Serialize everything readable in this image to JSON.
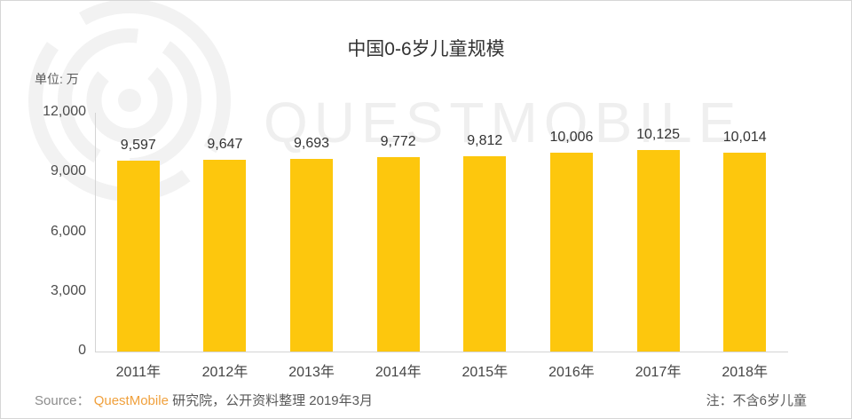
{
  "page": {
    "title": "中国0-6岁儿童规模",
    "unit_label": "单位: 万",
    "watermark_text": "QUESTMOBILE",
    "footer": {
      "source_prefix": "Source：",
      "source_brand": "QuestMobile",
      "source_suffix": "研究院，公开资料整理 2019年3月",
      "note": "注：不含6岁儿童"
    }
  },
  "colors": {
    "bar": "#FDC70D",
    "brand_orange": "#F0A03C",
    "axis_line": "#D4D4D4",
    "title_text": "#333333",
    "axis_text": "#4D4D4D",
    "gray_text": "#595959",
    "watermark": "#EFEFEF"
  },
  "chart_data": {
    "type": "bar",
    "title": "中国0-6岁儿童规模",
    "unit": "万",
    "categories": [
      "2011年",
      "2012年",
      "2013年",
      "2014年",
      "2015年",
      "2016年",
      "2017年",
      "2018年"
    ],
    "values": [
      9597,
      9647,
      9693,
      9772,
      9812,
      10006,
      10125,
      10014
    ],
    "value_labels": [
      "9,597",
      "9,647",
      "9,693",
      "9,772",
      "9,812",
      "10,006",
      "10,125",
      "10,014"
    ],
    "xlabel": "",
    "ylabel": "单位: 万",
    "ylim": [
      0,
      12000
    ],
    "yticks": [
      0,
      3000,
      6000,
      9000,
      12000
    ],
    "ytick_labels": [
      "0",
      "3,000",
      "6,000",
      "9,000",
      "12,000"
    ],
    "grid": false,
    "legend": "none",
    "note": "注：不含6岁儿童",
    "source": "Source：QuestMobile研究院，公开资料整理 2019年3月"
  }
}
